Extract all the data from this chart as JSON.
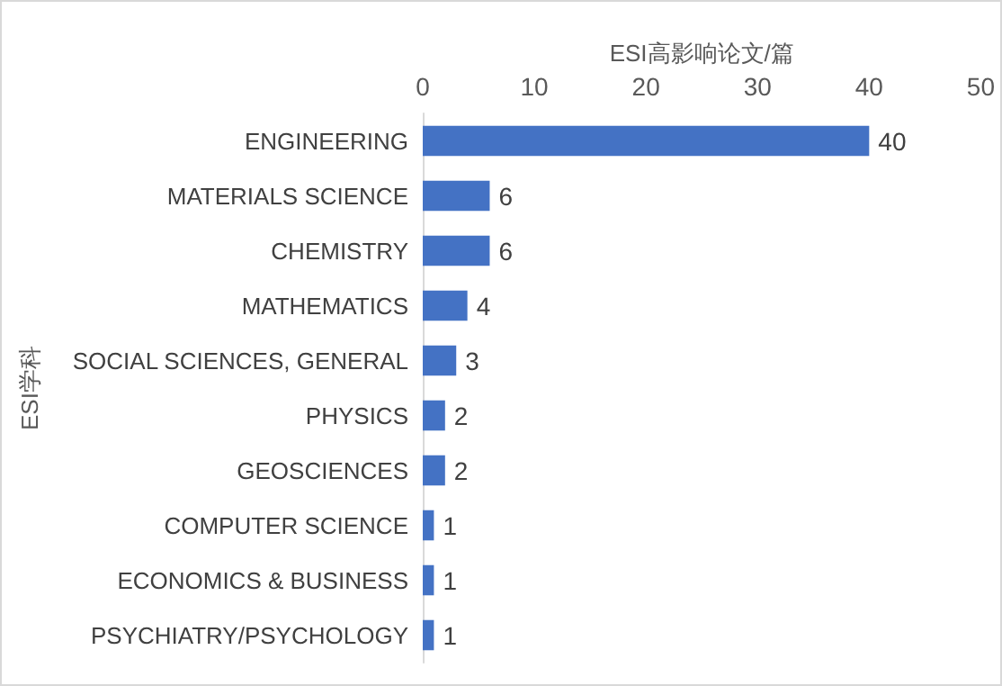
{
  "chart_data": {
    "type": "bar",
    "orientation": "horizontal",
    "xlabel": "ESI高影响论文/篇",
    "ylabel": "ESI学科",
    "categories": [
      "ENGINEERING",
      "MATERIALS SCIENCE",
      "CHEMISTRY",
      "MATHEMATICS",
      "SOCIAL SCIENCES, GENERAL",
      "PHYSICS",
      "GEOSCIENCES",
      "COMPUTER SCIENCE",
      "ECONOMICS & BUSINESS",
      "PSYCHIATRY/PSYCHOLOGY"
    ],
    "values": [
      40,
      6,
      6,
      4,
      3,
      2,
      2,
      1,
      1,
      1
    ],
    "color": "#4472c4",
    "xlim": [
      0,
      50
    ],
    "xticks": [
      0,
      10,
      20,
      30,
      40,
      50
    ],
    "data_labels": true
  }
}
